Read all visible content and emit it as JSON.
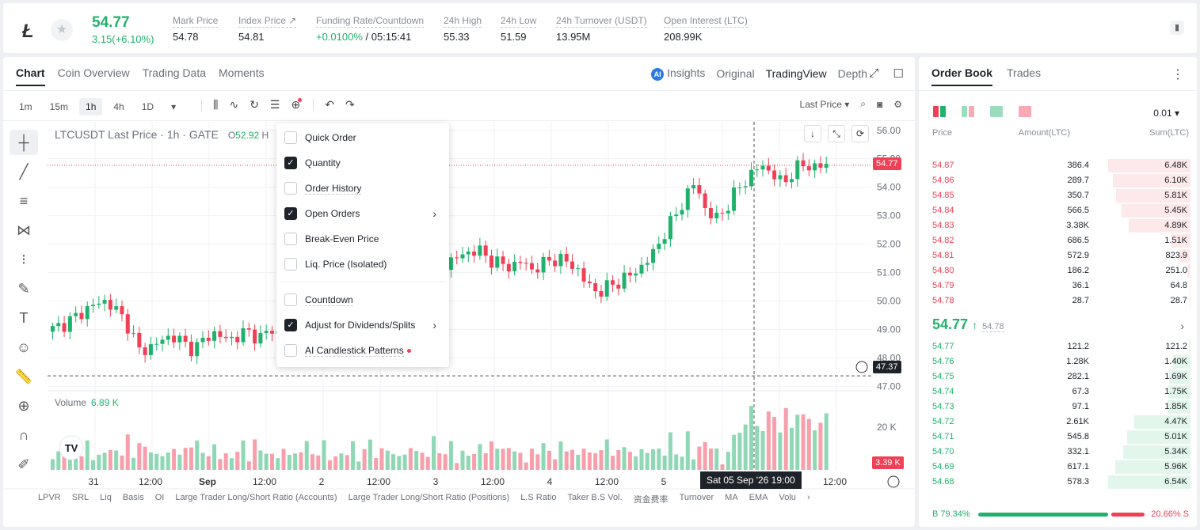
{
  "ticker": {
    "coin_icon": "litecoin-logo",
    "price": "54.77",
    "change": "3.15(+6.10%)",
    "stats": [
      {
        "label": "Mark Price",
        "value": "54.78"
      },
      {
        "label": "Index Price ↗",
        "value": "54.81"
      },
      {
        "label": "Funding Rate/Countdown",
        "value_green": "+0.0100%",
        "value": " / 05:15:41"
      },
      {
        "label": "24h High",
        "value": "55.33"
      },
      {
        "label": "24h Low",
        "value": "51.59"
      },
      {
        "label": "24h Turnover (USDT)",
        "value": "13.95M"
      },
      {
        "label": "Open Interest (LTC)",
        "value": "208.99K"
      }
    ]
  },
  "chart_tabs": [
    "Chart",
    "Coin Overview",
    "Trading Data",
    "Moments"
  ],
  "view_tabs": {
    "insights": "Insights",
    "original": "Original",
    "tradingview": "TradingView",
    "depth": "Depth"
  },
  "intervals": [
    "1m",
    "15m",
    "1h",
    "4h",
    "1D"
  ],
  "last_price_select": "Last Price",
  "chart_title": {
    "symbol": "LTCUSDT Last Price · 1h · GATE",
    "o_label": "O",
    "o_value": "52.92",
    "h_label": "H"
  },
  "volume": {
    "label": "Volume",
    "value": "6.89 K"
  },
  "price_tags": {
    "last": "54.77",
    "crosshair": "47.37",
    "volume": "3.39 K"
  },
  "crosshair_time": "Sat 05 Sep '26   19:00",
  "popup": {
    "items": [
      {
        "label": "Quick Order",
        "checked": false,
        "underline": false
      },
      {
        "label": "Quantity",
        "checked": true,
        "underline": false
      },
      {
        "label": "Order History",
        "checked": false,
        "underline": true
      },
      {
        "label": "Open Orders",
        "checked": true,
        "underline": false,
        "submenu": true
      },
      {
        "label": "Break-Even Price",
        "checked": false,
        "underline": false
      },
      {
        "label": "Liq. Price (Isolated)",
        "checked": false,
        "underline": false
      },
      {
        "label": "Countdown",
        "checked": false,
        "underline": true
      },
      {
        "label": "Adjust for Dividends/Splits",
        "checked": true,
        "underline": false,
        "submenu": true
      },
      {
        "label": "AI Candlestick Patterns",
        "checked": false,
        "underline": true
      }
    ]
  },
  "indicators": [
    "LPVR",
    "SRL",
    "Liq",
    "Basis",
    "OI",
    "Large Trader Long/Short Ratio (Accounts)",
    "Large Trader Long/Short Ratio (Positions)",
    "L.S Ratio",
    "Taker B.S Vol.",
    "资金费率",
    "Turnover",
    "MA",
    "EMA",
    "Volu"
  ],
  "order_book": {
    "tabs": [
      "Order Book",
      "Trades"
    ],
    "tick": "0.01",
    "headers": {
      "price": "Price",
      "amount": "Amount(LTC)",
      "sum": "Sum(LTC)"
    },
    "asks": [
      {
        "price": "54.87",
        "amount": "386.4",
        "sum": "6.48K",
        "depth": 1.0
      },
      {
        "price": "54.86",
        "amount": "289.7",
        "sum": "6.10K",
        "depth": 0.94
      },
      {
        "price": "54.85",
        "amount": "350.7",
        "sum": "5.81K",
        "depth": 0.9
      },
      {
        "price": "54.84",
        "amount": "566.5",
        "sum": "5.45K",
        "depth": 0.84
      },
      {
        "price": "54.83",
        "amount": "3.38K",
        "sum": "4.89K",
        "depth": 0.75
      },
      {
        "price": "54.82",
        "amount": "686.5",
        "sum": "1.51K",
        "depth": 0.23
      },
      {
        "price": "54.81",
        "amount": "572.9",
        "sum": "823.9",
        "depth": 0.13
      },
      {
        "price": "54.80",
        "amount": "186.2",
        "sum": "251.0",
        "depth": 0.04
      },
      {
        "price": "54.79",
        "amount": "36.1",
        "sum": "64.8",
        "depth": 0.01
      },
      {
        "price": "54.78",
        "amount": "28.7",
        "sum": "28.7",
        "depth": 0.005
      }
    ],
    "last_price": "54.77",
    "mark_price": "54.78",
    "bids": [
      {
        "price": "54.77",
        "amount": "121.2",
        "sum": "121.2",
        "depth": 0.02
      },
      {
        "price": "54.76",
        "amount": "1.28K",
        "sum": "1.40K",
        "depth": 0.21
      },
      {
        "price": "54.75",
        "amount": "282.1",
        "sum": "1.69K",
        "depth": 0.26
      },
      {
        "price": "54.74",
        "amount": "67.3",
        "sum": "1.75K",
        "depth": 0.27
      },
      {
        "price": "54.73",
        "amount": "97.1",
        "sum": "1.85K",
        "depth": 0.28
      },
      {
        "price": "54.72",
        "amount": "2.61K",
        "sum": "4.47K",
        "depth": 0.68
      },
      {
        "price": "54.71",
        "amount": "545.8",
        "sum": "5.01K",
        "depth": 0.77
      },
      {
        "price": "54.70",
        "amount": "332.1",
        "sum": "5.34K",
        "depth": 0.82
      },
      {
        "price": "54.69",
        "amount": "617.1",
        "sum": "5.96K",
        "depth": 0.91
      },
      {
        "price": "54.68",
        "amount": "578.3",
        "sum": "6.54K",
        "depth": 1.0
      }
    ],
    "buy_ratio": "B 79.34%",
    "sell_ratio": "20.66% S"
  },
  "chart_data": {
    "type": "candlestick",
    "price_axis": [
      "56.00",
      "55.00",
      "54.00",
      "53.00",
      "52.00",
      "51.00",
      "50.00",
      "49.00",
      "48.00",
      "47.00"
    ],
    "volume_axis": [
      "20 K"
    ],
    "time_axis": [
      "31",
      "12:00",
      "Sep",
      "12:00",
      "2",
      "12:00",
      "3",
      "12:00",
      "4",
      "12:00",
      "5",
      "12:00"
    ],
    "close_series": [
      49.0,
      49.2,
      49.4,
      49.7,
      49.9,
      50.0,
      49.6,
      49.1,
      48.2,
      48.4,
      48.6,
      48.8,
      48.5,
      48.3,
      48.7,
      48.9,
      48.6,
      48.8,
      48.9,
      48.7,
      49.0,
      48.8,
      49.0,
      49.2,
      49.4,
      49.5,
      49.7,
      49.6,
      49.9,
      50.1,
      50.3,
      50.5,
      50.8,
      50.7,
      50.9,
      51.2,
      51.3,
      51.5,
      51.7,
      51.8,
      51.5,
      51.3,
      51.2,
      51.4,
      51.1,
      51.3,
      51.5,
      51.4,
      51.2,
      50.6,
      50.3,
      50.5,
      50.7,
      50.9,
      51.2,
      51.6,
      52.3,
      52.9,
      53.6,
      54.2,
      53.1,
      52.9,
      53.4,
      54.0,
      54.4,
      54.8,
      54.5,
      54.1,
      54.6,
      54.8,
      54.7,
      54.77
    ],
    "colors": {
      "up": "#20b26c",
      "down": "#ef4056"
    }
  }
}
